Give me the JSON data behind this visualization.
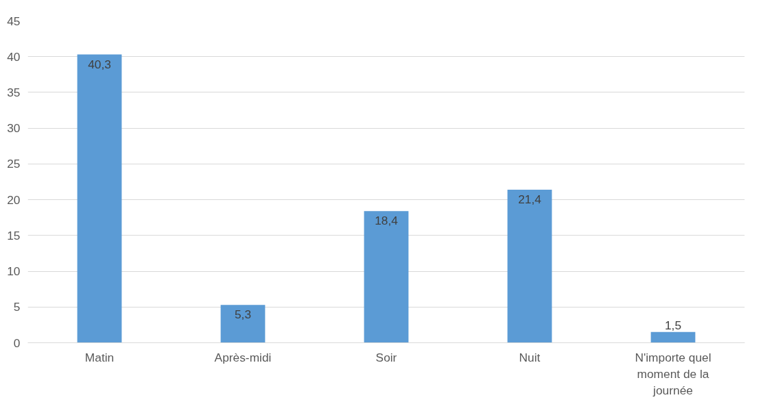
{
  "chart_data": {
    "type": "bar",
    "categories": [
      "Matin",
      "Après-midi",
      "Soir",
      "Nuit",
      "N'importe quel moment de la journée"
    ],
    "values": [
      40.3,
      5.3,
      18.4,
      21.4,
      1.5
    ],
    "value_labels": [
      "40,3",
      "5,3",
      "18,4",
      "21,4",
      "1,5"
    ],
    "color": "#5b9bd5",
    "ylim": [
      0,
      45
    ],
    "yticks": [
      0,
      5,
      10,
      15,
      20,
      25,
      30,
      35,
      40,
      45
    ],
    "grid": "y"
  }
}
